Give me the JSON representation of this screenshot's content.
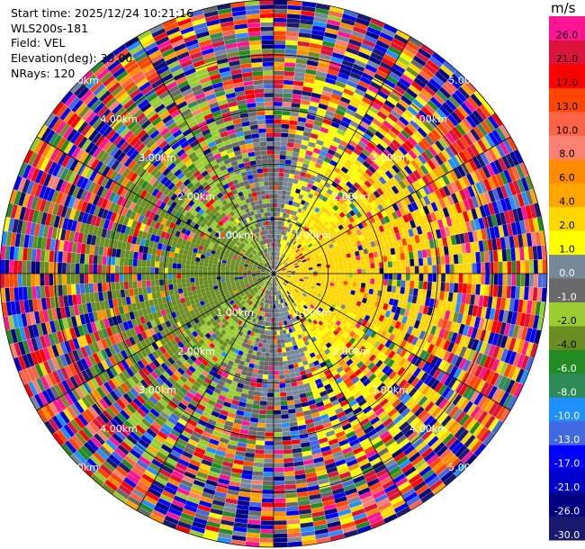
{
  "figure": {
    "start_time": "Start time: 2025/12/24 10:21:16",
    "instrument": "WLS200s-181",
    "field": "Field: VEL",
    "elevation": "Elevation(deg): 35.00",
    "nrays": "NRays: 120"
  },
  "colorbar": {
    "unit": "m/s",
    "bins": [
      {
        "lo": -30.0,
        "hi": -26.0,
        "color": "#191970"
      },
      {
        "lo": -26.0,
        "hi": -21.0,
        "color": "#000080"
      },
      {
        "lo": -21.0,
        "hi": -17.0,
        "color": "#0000cd"
      },
      {
        "lo": -17.0,
        "hi": -13.0,
        "color": "#0000ff"
      },
      {
        "lo": -13.0,
        "hi": -10.0,
        "color": "#4169e1"
      },
      {
        "lo": -10.0,
        "hi": -8.0,
        "color": "#1e90ff"
      },
      {
        "lo": -8.0,
        "hi": -6.0,
        "color": "#2e8b57"
      },
      {
        "lo": -6.0,
        "hi": -4.0,
        "color": "#228b22"
      },
      {
        "lo": -4.0,
        "hi": -2.0,
        "color": "#6b8e23"
      },
      {
        "lo": -2.0,
        "hi": -1.0,
        "color": "#9acd32"
      },
      {
        "lo": -1.0,
        "hi": 0.0,
        "color": "#696969"
      },
      {
        "lo": 0.0,
        "hi": 1.0,
        "color": "#778899"
      },
      {
        "lo": 1.0,
        "hi": 2.0,
        "color": "#ffff00"
      },
      {
        "lo": 2.0,
        "hi": 4.0,
        "color": "#ffd700"
      },
      {
        "lo": 4.0,
        "hi": 6.0,
        "color": "#ffa500"
      },
      {
        "lo": 6.0,
        "hi": 8.0,
        "color": "#ff8c00"
      },
      {
        "lo": 8.0,
        "hi": 10.0,
        "color": "#fa8072"
      },
      {
        "lo": 10.0,
        "hi": 13.0,
        "color": "#ff6347"
      },
      {
        "lo": 13.0,
        "hi": 17.0,
        "color": "#ff4500"
      },
      {
        "lo": 17.0,
        "hi": 21.0,
        "color": "#ff0000"
      },
      {
        "lo": 21.0,
        "hi": 26.0,
        "color": "#dc143c"
      },
      {
        "lo": 26.0,
        "hi": 30.0,
        "color": "#ff1493"
      }
    ],
    "tick_labels": [
      "-30.0",
      "-26.0",
      "-21.0",
      "-17.0",
      "-13.0",
      "-10.0",
      "-8.0",
      "-6.0",
      "-4.0",
      "-2.0",
      "-1.0",
      "0.0",
      "1.0",
      "2.0",
      "4.0",
      "6.0",
      "8.0",
      "10.0",
      "13.0",
      "17.0",
      "21.0",
      "26.0"
    ]
  },
  "chart_data": {
    "type": "heatmap",
    "projection": "polar-ppi",
    "field": "VEL",
    "unit": "m/s",
    "nrays": 120,
    "range_max_km": 5.0,
    "range_rings_km": [
      1.0,
      2.0,
      3.0,
      4.0,
      5.0
    ],
    "ring_label_text": [
      "1.00km",
      "2.00km",
      "3.00km",
      "4.00km",
      "5.00km"
    ],
    "azimuth_spokes_deg": [
      0,
      30,
      60,
      90,
      120,
      150,
      180,
      210,
      240,
      270,
      300,
      330
    ],
    "vlim": [
      -30.0,
      30.0
    ],
    "pattern": {
      "inner_clean_range_km": 1.6,
      "toward_azimuth_deg": 270,
      "away_azimuth_deg": 90,
      "inner_peak_velocity": 3.0,
      "noise_increases_with_range": true
    },
    "grid": true
  }
}
